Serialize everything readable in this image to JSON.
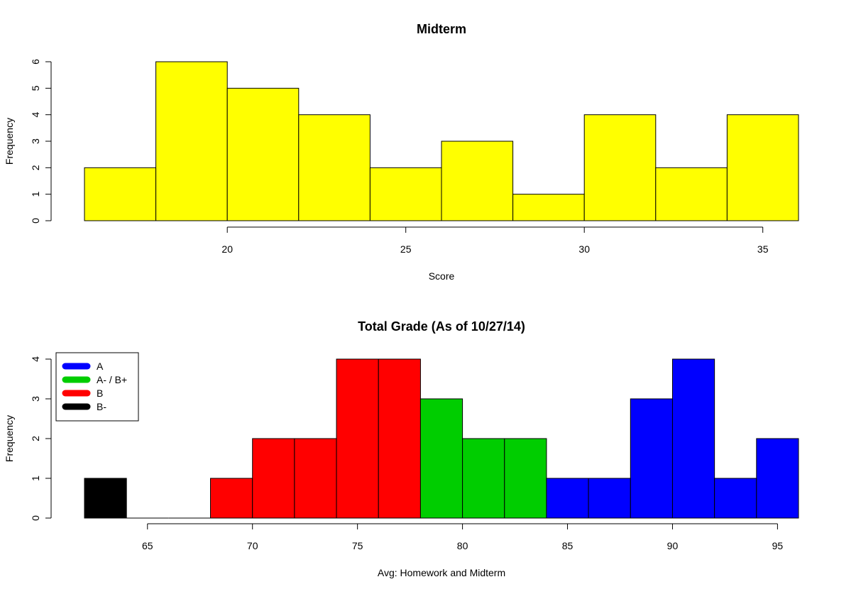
{
  "chart_data": [
    {
      "type": "bar",
      "title": "Midterm",
      "xlabel": "Score",
      "ylabel": "Frequency",
      "bin_edges": [
        16,
        18,
        20,
        22,
        24,
        26,
        28,
        30,
        32,
        34,
        36
      ],
      "values": [
        2,
        6,
        5,
        4,
        2,
        3,
        1,
        4,
        2,
        4
      ],
      "bar_color": "#ffff00",
      "xticks": [
        20,
        25,
        30,
        35
      ],
      "yticks": [
        0,
        1,
        2,
        3,
        4,
        5,
        6
      ],
      "ylim": [
        0,
        6
      ],
      "grid": false
    },
    {
      "type": "bar",
      "title": "Total Grade (As of 10/27/14)",
      "xlabel": "Avg: Homework and Midterm",
      "ylabel": "Frequency",
      "bin_edges": [
        62,
        64,
        66,
        68,
        70,
        72,
        74,
        76,
        78,
        80,
        82,
        84,
        86,
        88,
        90,
        92,
        94,
        96
      ],
      "values": [
        1,
        0,
        0,
        1,
        2,
        2,
        4,
        4,
        3,
        2,
        2,
        1,
        1,
        3,
        4,
        1,
        2
      ],
      "bar_grades": [
        "B-",
        "B-",
        "B-",
        "B",
        "B",
        "B",
        "B",
        "B",
        "A- / B+",
        "A- / B+",
        "A- / B+",
        "A",
        "A",
        "A",
        "A",
        "A",
        "A"
      ],
      "xticks": [
        65,
        70,
        75,
        80,
        85,
        90,
        95
      ],
      "yticks": [
        0,
        1,
        2,
        3,
        4
      ],
      "ylim": [
        0,
        4
      ],
      "grid": false,
      "legend": {
        "placement": "top-left",
        "entries": [
          {
            "label": "A",
            "color": "#0000ff"
          },
          {
            "label": "A- / B+",
            "color": "#00cd00"
          },
          {
            "label": "B",
            "color": "#ff0000"
          },
          {
            "label": "B-",
            "color": "#000000"
          }
        ]
      }
    }
  ]
}
